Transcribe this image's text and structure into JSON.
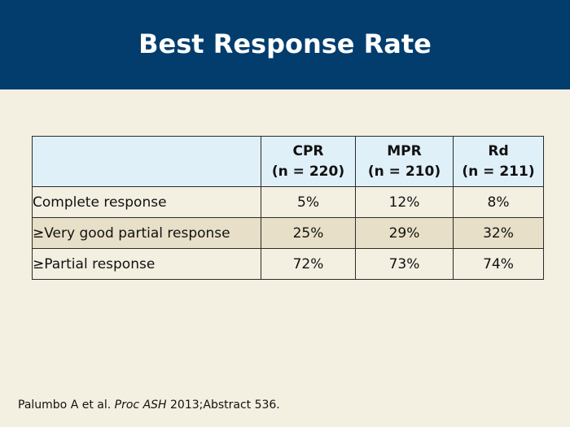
{
  "slide": {
    "title": "Best Response Rate"
  },
  "table": {
    "columns": [
      {
        "name": "CPR",
        "n": "(n = 220)"
      },
      {
        "name": "MPR",
        "n": "(n = 210)"
      },
      {
        "name": "Rd",
        "n": "(n = 211)"
      }
    ],
    "rows": [
      {
        "label": "Complete response",
        "values": [
          "5%",
          "12%",
          "8%"
        ]
      },
      {
        "label": "≥Very good partial response",
        "values": [
          "25%",
          "29%",
          "32%"
        ]
      },
      {
        "label": "≥Partial response",
        "values": [
          "72%",
          "73%",
          "74%"
        ]
      }
    ]
  },
  "citation": {
    "authors": "Palumbo A et al.",
    "journal": "Proc ASH",
    "rest": "2013;Abstract 536."
  },
  "colors": {
    "header_bg": "#023d6e",
    "page_bg": "#f3efe1",
    "header_row_bg": "#e0f0f8",
    "alt_row_bg": "#e7dfc7"
  }
}
